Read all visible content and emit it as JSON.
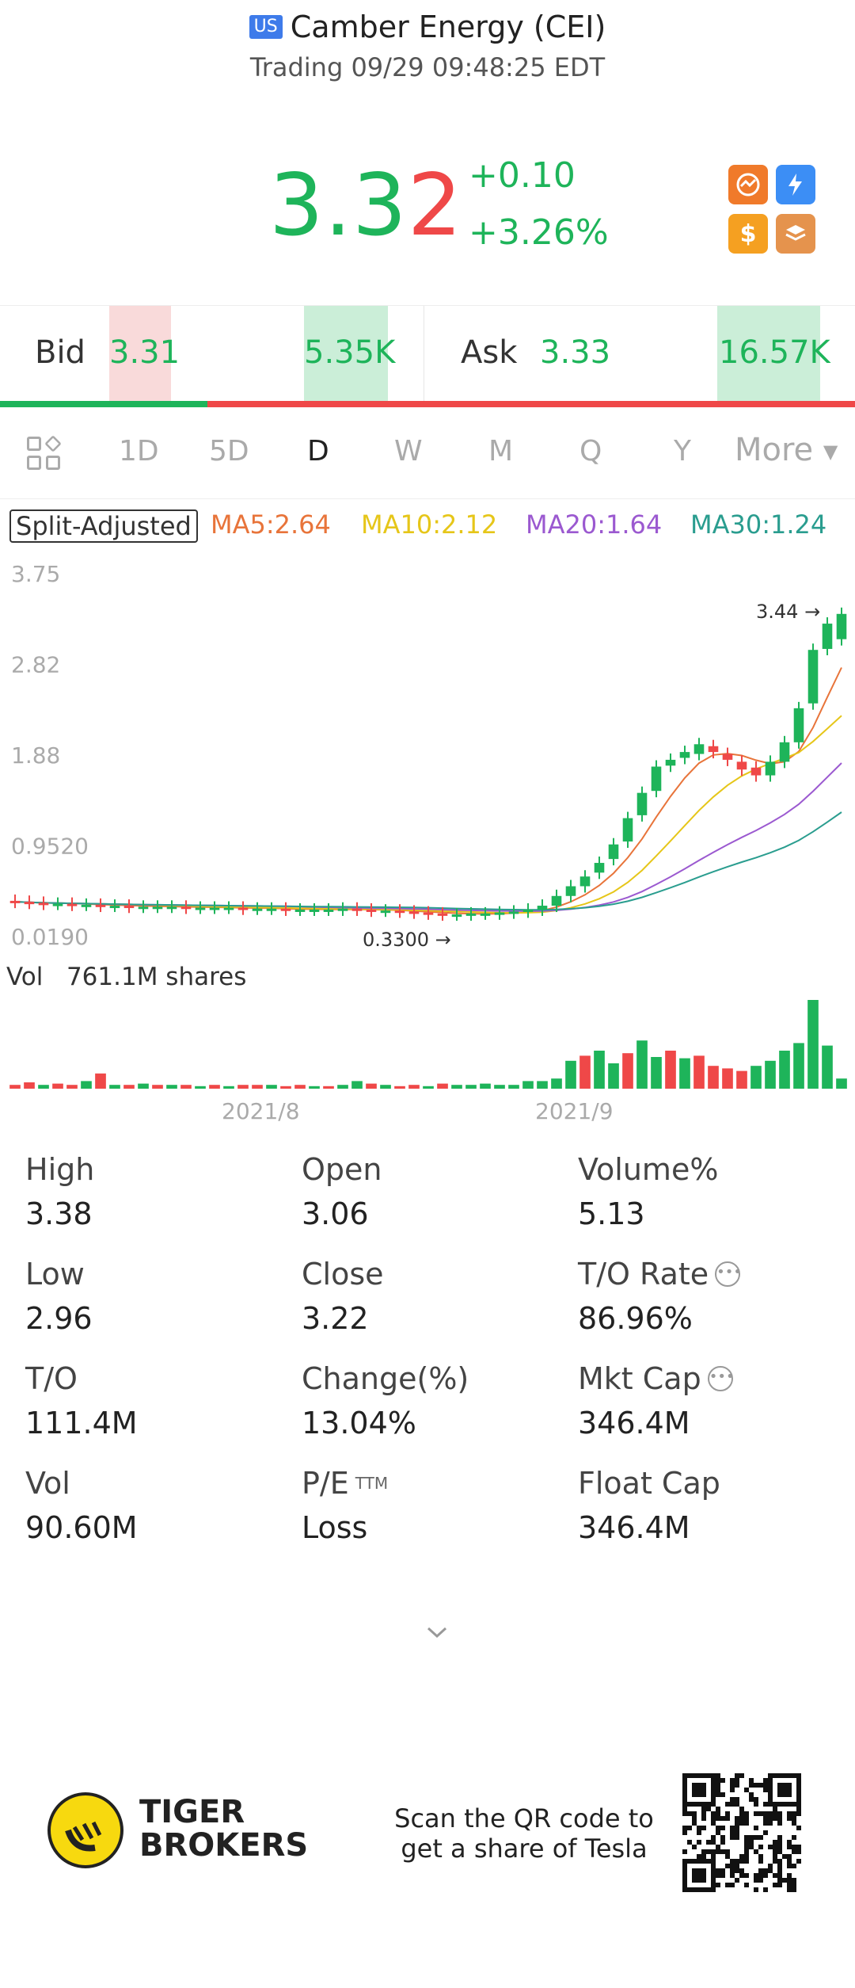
{
  "header": {
    "market_badge": "US",
    "title": "Camber Energy (CEI)",
    "subtitle": "Trading 09/29 09:48:25 EDT"
  },
  "quote": {
    "price_main": "3.3",
    "price_last_digit": "2",
    "change": "+0.10",
    "change_pct": "+3.26%",
    "up_color": "#1eb45a",
    "down_color": "#ef4848",
    "quick_icons": [
      "hot-icon",
      "lightning-icon",
      "dollar-icon",
      "stack-icon"
    ]
  },
  "bid_ask": {
    "bid_label": "Bid",
    "bid_price": "3.31",
    "bid_size": "5.35K",
    "ask_label": "Ask",
    "ask_price": "3.33",
    "ask_size": "16.57K",
    "bid_share": 0.243
  },
  "tabs": {
    "items": [
      "1D",
      "5D",
      "D",
      "W",
      "M",
      "Q",
      "Y"
    ],
    "active": "D",
    "more": "More"
  },
  "ma_row": {
    "split_label": "Split-Adjusted",
    "ma5": "MA5:2.64",
    "ma10": "MA10:2.12",
    "ma20": "MA20:1.64",
    "ma30": "MA30:1.24",
    "ma5_color": "#e8743a",
    "ma10_color": "#e6c619",
    "ma20_color": "#9b59d0",
    "ma30_color": "#2a9d8f"
  },
  "chart_data": {
    "type": "candlestick",
    "y_ticks": [
      "3.75",
      "2.82",
      "1.88",
      "0.9520",
      "0.0190"
    ],
    "ylim": [
      0.019,
      3.75
    ],
    "high_marker": "3.44",
    "low_marker": "0.3300",
    "volume_label": "Vol",
    "volume_value": "761.1M shares",
    "x_ticks": [
      "2021/8",
      "2021/9"
    ],
    "closes": [
      0.36,
      0.35,
      0.34,
      0.34,
      0.33,
      0.33,
      0.32,
      0.32,
      0.31,
      0.31,
      0.31,
      0.31,
      0.3,
      0.3,
      0.3,
      0.3,
      0.29,
      0.29,
      0.29,
      0.28,
      0.28,
      0.28,
      0.28,
      0.29,
      0.28,
      0.27,
      0.27,
      0.26,
      0.25,
      0.24,
      0.23,
      0.23,
      0.24,
      0.24,
      0.25,
      0.26,
      0.28,
      0.32,
      0.42,
      0.52,
      0.62,
      0.76,
      0.95,
      1.22,
      1.48,
      1.75,
      1.82,
      1.9,
      1.98,
      1.9,
      1.82,
      1.72,
      1.66,
      1.8,
      2.0,
      2.35,
      2.95,
      3.22,
      3.32
    ],
    "opens": [
      0.37,
      0.36,
      0.35,
      0.34,
      0.34,
      0.33,
      0.33,
      0.32,
      0.32,
      0.31,
      0.31,
      0.31,
      0.31,
      0.3,
      0.3,
      0.3,
      0.3,
      0.29,
      0.29,
      0.29,
      0.28,
      0.28,
      0.28,
      0.28,
      0.29,
      0.28,
      0.27,
      0.27,
      0.26,
      0.25,
      0.24,
      0.23,
      0.23,
      0.24,
      0.24,
      0.25,
      0.26,
      0.28,
      0.32,
      0.42,
      0.52,
      0.66,
      0.8,
      0.98,
      1.25,
      1.5,
      1.76,
      1.84,
      1.88,
      1.96,
      1.88,
      1.8,
      1.74,
      1.66,
      1.8,
      2.0,
      2.4,
      2.96,
      3.06
    ],
    "volumes": [
      3,
      5,
      3,
      4,
      3,
      6,
      12,
      3,
      3,
      4,
      3,
      3,
      3,
      2,
      3,
      2,
      3,
      3,
      3,
      2,
      3,
      2,
      2,
      3,
      6,
      4,
      3,
      2,
      3,
      2,
      4,
      3,
      3,
      4,
      3,
      3,
      6,
      6,
      8,
      22,
      26,
      30,
      20,
      28,
      38,
      25,
      30,
      24,
      26,
      18,
      16,
      14,
      18,
      22,
      30,
      36,
      70,
      34,
      8
    ],
    "volume_up": [
      false,
      false,
      true,
      false,
      false,
      true,
      false,
      true,
      false,
      true,
      false,
      true,
      false,
      true,
      false,
      true,
      false,
      false,
      true,
      false,
      false,
      true,
      false,
      true,
      true,
      false,
      true,
      false,
      false,
      true,
      false,
      true,
      true,
      true,
      true,
      true,
      true,
      true,
      true,
      true,
      false,
      true,
      true,
      false,
      true,
      true,
      false,
      true,
      false,
      false,
      false,
      false,
      true,
      true,
      true,
      true,
      true,
      true,
      true
    ]
  },
  "stats": [
    {
      "label": "High",
      "value": "3.38"
    },
    {
      "label": "Open",
      "value": "3.06"
    },
    {
      "label": "Volume%",
      "value": "5.13"
    },
    {
      "label": "Low",
      "value": "2.96"
    },
    {
      "label": "Close",
      "value": "3.22"
    },
    {
      "label": "T/O Rate",
      "value": "86.96%"
    },
    {
      "label": "T/O",
      "value": "111.4M"
    },
    {
      "label": "Change(%)",
      "value": "13.04%"
    },
    {
      "label": "Mkt Cap",
      "value": "346.4M"
    },
    {
      "label": "Vol",
      "value": "90.60M"
    },
    {
      "label": "P/E",
      "value": "Loss"
    },
    {
      "label": "Float Cap",
      "value": "346.4M"
    }
  ],
  "stats_extra": {
    "pe_superscript": "TTM",
    "info_icon": "ellipsis-circle-icon"
  },
  "footer": {
    "brand_line1": "TIGER",
    "brand_line2": "BROKERS",
    "scan_text_line1": "Scan the QR code to",
    "scan_text_line2": "get a share of Tesla"
  }
}
